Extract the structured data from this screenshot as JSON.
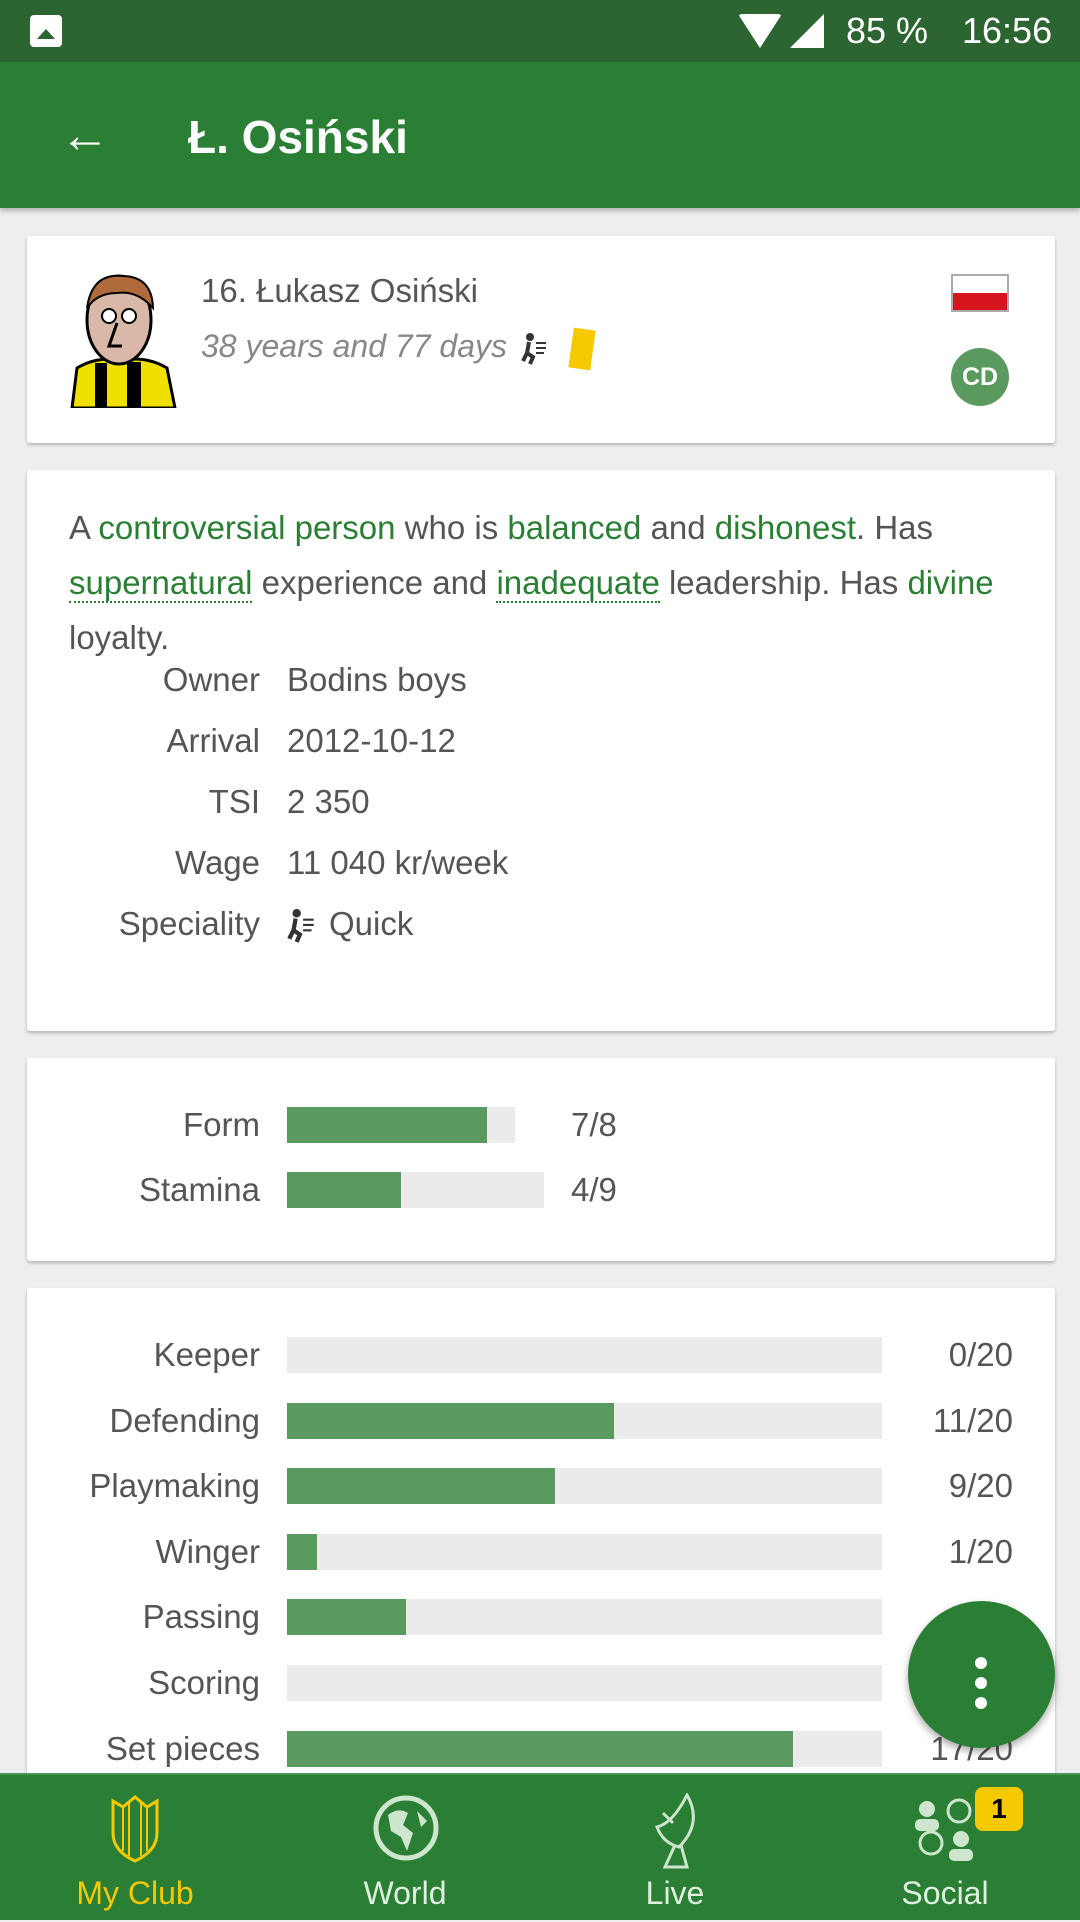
{
  "status_bar": {
    "battery": "85 %",
    "time": "16:56"
  },
  "app_bar": {
    "title": "Ł. Osiński"
  },
  "player": {
    "name": "16. Łukasz Osiński",
    "age": "38 years and 77 days",
    "nationality_flag": "poland",
    "position": "CD",
    "speciality_icon": "quick-runner-icon",
    "yellow_card": true
  },
  "description": {
    "p1": "A ",
    "w1": "controversial person",
    "p2": " who is ",
    "w2": "balanced",
    "p3": " and ",
    "w3": "dishonest",
    "p4": ". Has ",
    "w4": "supernatural",
    "p5": " experience and ",
    "w5": "inadequate",
    "p6": " leadership. Has ",
    "w6": "divine",
    "p7": " loyalty."
  },
  "info": [
    {
      "label": "Owner",
      "value": "Bodins boys"
    },
    {
      "label": "Arrival",
      "value": "2012-10-12"
    },
    {
      "label": "TSI",
      "value": "2 350"
    },
    {
      "label": "Wage",
      "value": "11 040 kr/week"
    },
    {
      "label": "Speciality",
      "value": "Quick"
    }
  ],
  "condition": [
    {
      "label": "Form",
      "value": 7,
      "max": 8,
      "text": "7/8"
    },
    {
      "label": "Stamina",
      "value": 4,
      "max": 9,
      "text": "4/9"
    }
  ],
  "skills": [
    {
      "label": "Keeper",
      "value": 0,
      "max": 20,
      "text": "0/20"
    },
    {
      "label": "Defending",
      "value": 11,
      "max": 20,
      "text": "11/20"
    },
    {
      "label": "Playmaking",
      "value": 9,
      "max": 20,
      "text": "9/20"
    },
    {
      "label": "Winger",
      "value": 1,
      "max": 20,
      "text": "1/20"
    },
    {
      "label": "Passing",
      "value": 4,
      "max": 20,
      "text": "4/20"
    },
    {
      "label": "Scoring",
      "value": 0,
      "max": 20,
      "text": ""
    },
    {
      "label": "Set pieces",
      "value": 17,
      "max": 20,
      "text": "17/20"
    }
  ],
  "nav": [
    {
      "label": "My Club",
      "icon": "shield-icon",
      "active": true
    },
    {
      "label": "World",
      "icon": "globe-icon"
    },
    {
      "label": "Live",
      "icon": "satellite-dish-icon"
    },
    {
      "label": "Social",
      "icon": "social-icon",
      "badge": "1"
    }
  ],
  "colors": {
    "primary": "#2a7f35",
    "status_bar": "#2c6531",
    "bar_fill": "#5a9a5e",
    "active_nav": "#f5c800"
  }
}
